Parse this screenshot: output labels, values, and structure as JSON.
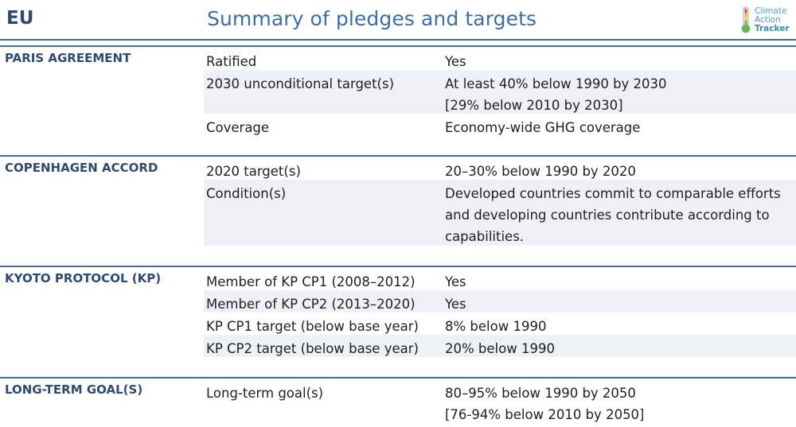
{
  "header": {
    "country": "EU",
    "title": "Summary of pledges and targets",
    "logo": [
      "Climate",
      "Action",
      "Tracker"
    ],
    "logo_icon": "thermometer-icon",
    "accent_color": "#3d6fa6",
    "row_shade_color": "#eef0f5"
  },
  "sections": [
    {
      "label": "PARIS AGREEMENT",
      "rows": [
        {
          "label": "Ratified",
          "value": [
            "Yes"
          ]
        },
        {
          "label": "2030 unconditional target(s)",
          "value": [
            "At least 40% below 1990 by 2030",
            "[29% below 2010 by 2030]"
          ]
        },
        {
          "label": "Coverage",
          "value": [
            "Economy-wide GHG coverage"
          ]
        }
      ]
    },
    {
      "label": "COPENHAGEN ACCORD",
      "rows": [
        {
          "label": "2020 target(s)",
          "value": [
            "20–30% below 1990 by 2020"
          ]
        },
        {
          "label": "Condition(s)",
          "value": [
            "Developed countries commit to comparable efforts",
            "and developing countries contribute according to",
            "capabilities."
          ]
        }
      ]
    },
    {
      "label": "KYOTO PROTOCOL (KP)",
      "rows": [
        {
          "label": "Member of KP CP1 (2008–2012)",
          "value": [
            "Yes"
          ]
        },
        {
          "label": "Member of KP CP2 (2013–2020)",
          "value": [
            "Yes"
          ]
        },
        {
          "label": "KP CP1 target (below base year)",
          "value": [
            "8% below 1990"
          ]
        },
        {
          "label": "KP CP2 target (below base year)",
          "value": [
            "20% below 1990"
          ]
        }
      ]
    },
    {
      "label": "LONG-TERM GOAL(S)",
      "rows": [
        {
          "label": "Long-term goal(s)",
          "value": [
            "80–95% below 1990 by 2050",
            "[76-94% below 2010 by 2050]"
          ]
        }
      ]
    }
  ]
}
